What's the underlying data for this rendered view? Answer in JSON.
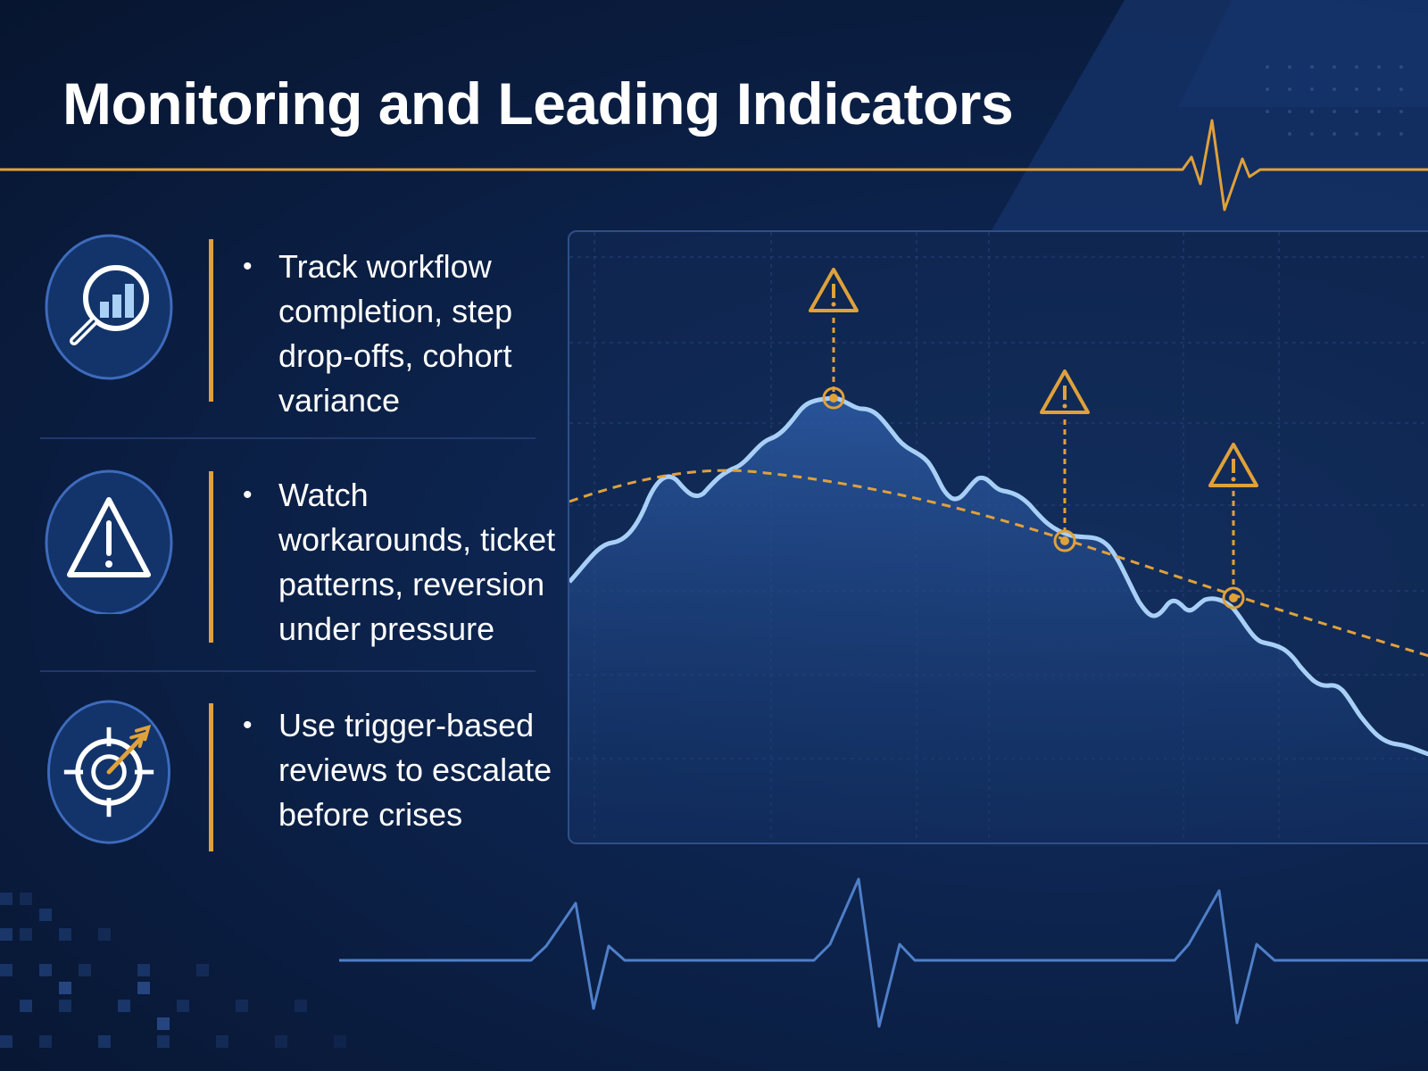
{
  "title": "Monitoring and Leading Indicators",
  "items": [
    {
      "icon": "magnifier-bar-chart-icon",
      "bullet": "•",
      "text": "Track workflow completion, step drop-offs, cohort variance"
    },
    {
      "icon": "warning-triangle-icon",
      "bullet": "•",
      "text": "Watch workarounds, ticket patterns, reversion under pressure"
    },
    {
      "icon": "target-arrow-icon",
      "bullet": "•",
      "text": "Use trigger-based reviews to escalate before crises"
    }
  ],
  "colors": {
    "accent": "#e0a13a",
    "line": "#9cc7f4",
    "background": "#0b1d3f",
    "panel_border": "#2f4f86"
  }
}
